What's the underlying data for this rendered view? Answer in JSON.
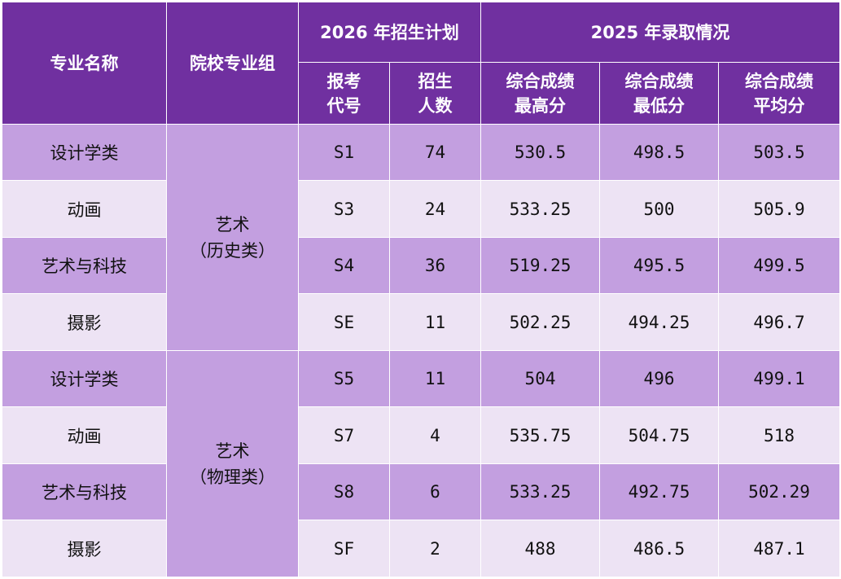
{
  "header": {
    "major_name": "专业名称",
    "group": "院校专业组",
    "plan_2026": "2026 年招生计划",
    "admission_2025": "2025 年录取情况",
    "code": [
      "报考",
      "代号"
    ],
    "count": [
      "招生",
      "人数"
    ],
    "max": [
      "综合成绩",
      "最高分"
    ],
    "min": [
      "综合成绩",
      "最低分"
    ],
    "avg": [
      "综合成绩",
      "平均分"
    ]
  },
  "groups": [
    {
      "name": "艺术",
      "sub": "（历史类）"
    },
    {
      "name": "艺术",
      "sub": "（物理类）"
    }
  ],
  "rows": [
    {
      "major": "设计学类",
      "code": "S1",
      "count": "74",
      "max": "530.5",
      "min": "498.5",
      "avg": "503.5"
    },
    {
      "major": "动画",
      "code": "S3",
      "count": "24",
      "max": "533.25",
      "min": "500",
      "avg": "505.9"
    },
    {
      "major": "艺术与科技",
      "code": "S4",
      "count": "36",
      "max": "519.25",
      "min": "495.5",
      "avg": "499.5"
    },
    {
      "major": "摄影",
      "code": "SE",
      "count": "11",
      "max": "502.25",
      "min": "494.25",
      "avg": "496.7"
    },
    {
      "major": "设计学类",
      "code": "S5",
      "count": "11",
      "max": "504",
      "min": "496",
      "avg": "499.1"
    },
    {
      "major": "动画",
      "code": "S7",
      "count": "4",
      "max": "535.75",
      "min": "504.75",
      "avg": "518"
    },
    {
      "major": "艺术与科技",
      "code": "S8",
      "count": "6",
      "max": "533.25",
      "min": "492.75",
      "avg": "502.29"
    },
    {
      "major": "摄影",
      "code": "SF",
      "count": "2",
      "max": "488",
      "min": "486.5",
      "avg": "487.1"
    }
  ]
}
